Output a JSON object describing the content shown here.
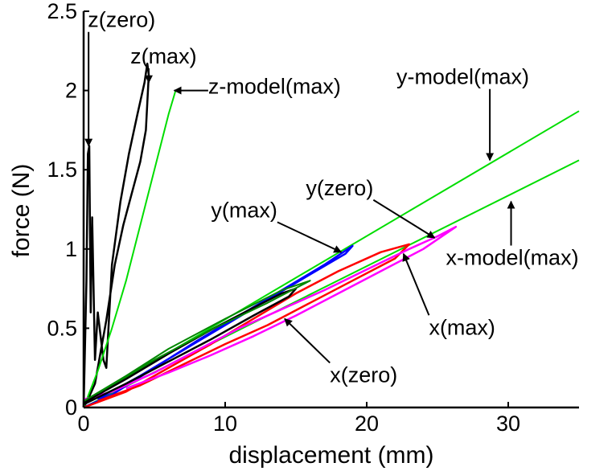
{
  "chart_data": {
    "type": "line",
    "title": "",
    "xlabel": "displacement (mm)",
    "ylabel": "force (N)",
    "xlim": [
      0,
      35
    ],
    "ylim": [
      0,
      2.5
    ],
    "xticks": [
      0,
      10,
      20,
      30
    ],
    "yticks": [
      0,
      0.5,
      1,
      1.5,
      2,
      2.5
    ],
    "xtick_labels": [
      "0",
      "10",
      "20",
      "30"
    ],
    "ytick_labels": [
      "0",
      "0.5",
      "1",
      "1.5",
      "2",
      "2.5"
    ],
    "grid": false,
    "legend": "none",
    "series": [
      {
        "color": "#000000",
        "width": 2.5,
        "points": [
          [
            0,
            0
          ],
          [
            0.2,
            0.8
          ],
          [
            0.3,
            1.6
          ],
          [
            0.4,
            1.65
          ],
          [
            0.5,
            0.6
          ],
          [
            0.6,
            1.2
          ],
          [
            0.8,
            0.3
          ],
          [
            1.0,
            0.6
          ],
          [
            1.4,
            0.3
          ],
          [
            1.6,
            0.25
          ],
          [
            2.0,
            0.9
          ],
          [
            2.6,
            1.3
          ],
          [
            3.2,
            1.6
          ],
          [
            3.8,
            1.85
          ],
          [
            4.3,
            2.05
          ],
          [
            4.5,
            2.17
          ],
          [
            4.6,
            2.1
          ],
          [
            4.4,
            1.75
          ],
          [
            4.0,
            1.55
          ],
          [
            3.4,
            1.35
          ],
          [
            2.8,
            1.15
          ],
          [
            2.2,
            0.9
          ],
          [
            1.6,
            0.55
          ],
          [
            1.2,
            0.35
          ],
          [
            0.8,
            0.15
          ],
          [
            0.3,
            0.05
          ],
          [
            0,
            0
          ]
        ]
      },
      {
        "color": "#00dd00",
        "width": 2,
        "points": [
          [
            0,
            0
          ],
          [
            1,
            0.23
          ],
          [
            2,
            0.5
          ],
          [
            3,
            0.8
          ],
          [
            4,
            1.15
          ],
          [
            5,
            1.5
          ],
          [
            6,
            1.85
          ],
          [
            6.5,
            2.0
          ]
        ]
      },
      {
        "color": "#00dd00",
        "width": 2,
        "points": [
          [
            0,
            0.03
          ],
          [
            35,
            1.87
          ]
        ]
      },
      {
        "color": "#00dd00",
        "width": 2,
        "points": [
          [
            0,
            0.0
          ],
          [
            35,
            1.56
          ]
        ]
      },
      {
        "color": "#0000ff",
        "width": 2.5,
        "points": [
          [
            0,
            0
          ],
          [
            2,
            0.08
          ],
          [
            5,
            0.25
          ],
          [
            8,
            0.42
          ],
          [
            11,
            0.58
          ],
          [
            14,
            0.74
          ],
          [
            17,
            0.9
          ],
          [
            19,
            1.02
          ],
          [
            18.5,
            0.97
          ],
          [
            16,
            0.84
          ],
          [
            13,
            0.68
          ],
          [
            10,
            0.52
          ],
          [
            7,
            0.36
          ],
          [
            4,
            0.2
          ],
          [
            1,
            0.05
          ]
        ]
      },
      {
        "color": "#ff0000",
        "width": 2.5,
        "points": [
          [
            0,
            0
          ],
          [
            3,
            0.1
          ],
          [
            6,
            0.25
          ],
          [
            9,
            0.4
          ],
          [
            12,
            0.56
          ],
          [
            15,
            0.72
          ],
          [
            18,
            0.86
          ],
          [
            21,
            0.98
          ],
          [
            23,
            1.03
          ],
          [
            22,
            0.94
          ],
          [
            19,
            0.8
          ],
          [
            16,
            0.66
          ],
          [
            13,
            0.52
          ],
          [
            10,
            0.4
          ],
          [
            7,
            0.27
          ],
          [
            4,
            0.14
          ],
          [
            1,
            0.04
          ]
        ]
      },
      {
        "color": "#ff00ff",
        "width": 2.5,
        "points": [
          [
            0,
            0.05
          ],
          [
            2,
            0.1
          ],
          [
            5,
            0.22
          ],
          [
            8,
            0.36
          ],
          [
            11,
            0.5
          ],
          [
            14,
            0.62
          ],
          [
            17,
            0.74
          ],
          [
            20,
            0.87
          ],
          [
            23,
            1.0
          ],
          [
            25,
            1.08
          ],
          [
            26.3,
            1.14
          ],
          [
            24,
            1.0
          ],
          [
            21,
            0.86
          ],
          [
            18,
            0.72
          ],
          [
            15,
            0.58
          ],
          [
            12,
            0.45
          ],
          [
            9,
            0.33
          ],
          [
            6,
            0.22
          ],
          [
            3,
            0.12
          ]
        ]
      },
      {
        "color": "#000000",
        "width": 2.5,
        "points": [
          [
            0,
            0.03
          ],
          [
            3,
            0.18
          ],
          [
            6,
            0.34
          ],
          [
            9,
            0.49
          ],
          [
            12,
            0.63
          ],
          [
            14,
            0.72
          ],
          [
            15,
            0.75
          ],
          [
            14.5,
            0.7
          ],
          [
            12,
            0.58
          ],
          [
            9,
            0.43
          ],
          [
            6,
            0.29
          ],
          [
            3,
            0.15
          ],
          [
            0,
            0.02
          ]
        ]
      },
      {
        "color": "#008800",
        "width": 2,
        "points": [
          [
            0,
            0.04
          ],
          [
            3,
            0.2
          ],
          [
            6,
            0.37
          ],
          [
            10,
            0.56
          ],
          [
            14,
            0.74
          ],
          [
            16,
            0.8
          ],
          [
            13,
            0.66
          ],
          [
            9,
            0.49
          ],
          [
            5,
            0.3
          ],
          [
            1,
            0.09
          ]
        ]
      }
    ],
    "annotations": [
      {
        "text": "z(zero)",
        "x": 0.3,
        "y": 2.4,
        "ax": 0.35,
        "ay": 1.65
      },
      {
        "text": "z(max)",
        "x": 3.3,
        "y": 2.17,
        "ax": 4.6,
        "ay": 2.05
      },
      {
        "text": "z-model(max)",
        "x": 8.8,
        "y": 1.98,
        "ax": 6.4,
        "ay": 2.0
      },
      {
        "text": "y-model(max)",
        "x": 22.1,
        "y": 2.04,
        "ax": 28.7,
        "ay": 1.56
      },
      {
        "text": "y(zero)",
        "x": 15.7,
        "y": 1.34,
        "ax": 24.8,
        "ay": 1.07
      },
      {
        "text": "y(max)",
        "x": 9.0,
        "y": 1.2,
        "ax": 18.2,
        "ay": 0.98
      },
      {
        "text": "x-model(max)",
        "x": 25.6,
        "y": 0.9,
        "ax": 30.2,
        "ay": 1.3
      },
      {
        "text": "x(max)",
        "x": 24.4,
        "y": 0.46,
        "ax": 22.6,
        "ay": 0.97
      },
      {
        "text": "x(zero)",
        "x": 17.4,
        "y": 0.16,
        "ax": 14.2,
        "ay": 0.56
      }
    ]
  }
}
